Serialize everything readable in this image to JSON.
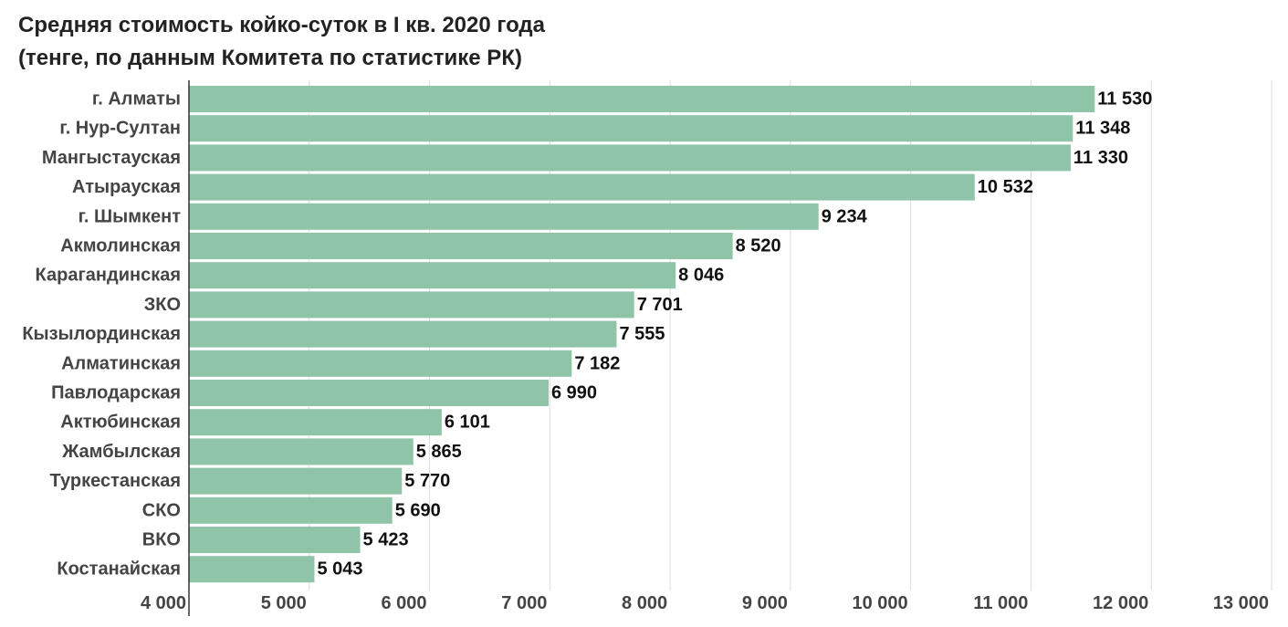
{
  "chart_data": {
    "type": "bar",
    "orientation": "horizontal",
    "title": "Средняя стоимость койко-суток в I кв. 2020 года",
    "subtitle": "(тенге, по данным Комитета по статистике РК)",
    "categories": [
      "г. Алматы",
      "г. Нур-Султан",
      "Мангыстауская",
      "Атырауская",
      "г. Шымкент",
      "Акмолинская",
      "Карагандинская",
      "ЗКО",
      "Кызылординская",
      "Алматинская",
      "Павлодарская",
      "Актюбинская",
      "Жамбылская",
      "Туркестанская",
      "СКО",
      "ВКО",
      "Костанайская"
    ],
    "values": [
      11530,
      11348,
      11330,
      10532,
      9234,
      8520,
      8046,
      7701,
      7555,
      7182,
      6990,
      6101,
      5865,
      5770,
      5690,
      5423,
      5043
    ],
    "value_labels": [
      "11 530",
      "11 348",
      "11 330",
      "10 532",
      "9 234",
      "8 520",
      "8 046",
      "7 701",
      "7 555",
      "7 182",
      "6 990",
      "6 101",
      "5 865",
      "5 770",
      "5 690",
      "5 423",
      "5 043"
    ],
    "xlim": [
      4000,
      13000
    ],
    "xticks": [
      4000,
      5000,
      6000,
      7000,
      8000,
      9000,
      10000,
      11000,
      12000,
      13000
    ],
    "xtick_labels": [
      "4 000",
      "5 000",
      "6 000",
      "7 000",
      "8 000",
      "9 000",
      "10 000",
      "11 000",
      "12 000",
      "13 000"
    ],
    "grid": true,
    "bar_color": "#8fc4a8"
  }
}
